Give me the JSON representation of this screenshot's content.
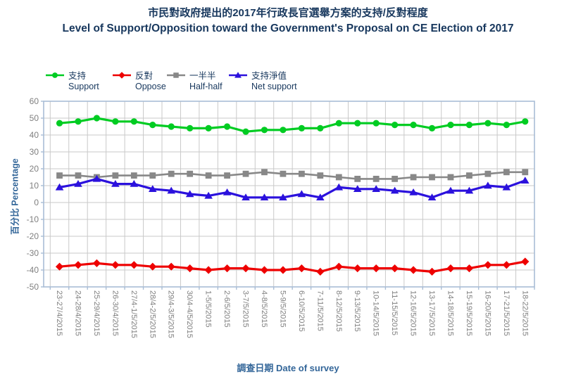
{
  "titles": {
    "zh": "市民對政府提出的2017年行政長官選舉方案的支持/反對程度",
    "en": "Level of Support/Opposition toward the Government's Proposal on CE Election of 2017"
  },
  "legend": [
    {
      "zh": "支持",
      "en": "Support",
      "marker": "circle",
      "color": "#00cc22"
    },
    {
      "zh": "反對",
      "en": "Oppose",
      "marker": "diamond",
      "color": "#ee0000"
    },
    {
      "zh": "一半半",
      "en": "Half-half",
      "marker": "square",
      "color": "#888888"
    },
    {
      "zh": "支持淨值",
      "en": "Net support",
      "marker": "triangle",
      "color": "#2b11dd"
    }
  ],
  "axes": {
    "x_title": "調查日期 Date of survey",
    "y_title": "百分比 Percentage"
  },
  "chart_data": {
    "type": "line",
    "title": "Level of Support/Opposition toward the Government's Proposal on CE Election of 2017",
    "title_zh": "市民對政府提出的2017年行政長官選舉方案的支持/反對程度",
    "xlabel": "調查日期 Date of survey",
    "ylabel": "百分比 Percentage",
    "ylim": [
      -50,
      60
    ],
    "ytick_step": 10,
    "grid": true,
    "legend_position": "top-left",
    "categories": [
      "23-27/4/2015",
      "24-28/4/2015",
      "25-29/4/2015",
      "26-30/4/2015",
      "27/4-1/5/2015",
      "28/4-2/5/2015",
      "29/4-3/5/2015",
      "30/4-4/5/2015",
      "1-5/5/2015",
      "2-6/5/2015",
      "3-7/5/2015",
      "4-8/5/2015",
      "5-9/5/2015",
      "6-10/5/2015",
      "7-11/5/2015",
      "8-12/5/2015",
      "9-13/5/2015",
      "10-14/5/2015",
      "11-15/5/2015",
      "12-16/5/2015",
      "13-17/5/2015",
      "14-18/5/2015",
      "15-19/5/2015",
      "16-20/5/2015",
      "17-21/5/2015",
      "18-22/5/2015"
    ],
    "series": [
      {
        "name_zh": "支持",
        "name_en": "Support",
        "marker": "circle",
        "color": "#00cc22",
        "values": [
          47,
          48,
          50,
          48,
          48,
          46,
          45,
          44,
          44,
          45,
          42,
          43,
          43,
          44,
          44,
          47,
          47,
          47,
          46,
          46,
          44,
          46,
          46,
          47,
          46,
          48
        ]
      },
      {
        "name_zh": "反對",
        "name_en": "Oppose",
        "marker": "diamond",
        "color": "#ee0000",
        "values": [
          -38,
          -37,
          -36,
          -37,
          -37,
          -38,
          -38,
          -39,
          -40,
          -39,
          -39,
          -40,
          -40,
          -39,
          -41,
          -38,
          -39,
          -39,
          -39,
          -40,
          -41,
          -39,
          -39,
          -37,
          -37,
          -35
        ]
      },
      {
        "name_zh": "一半半",
        "name_en": "Half-half",
        "marker": "square",
        "color": "#888888",
        "values": [
          16,
          16,
          15,
          16,
          16,
          16,
          17,
          17,
          16,
          16,
          17,
          18,
          17,
          17,
          16,
          15,
          14,
          14,
          14,
          15,
          15,
          15,
          16,
          17,
          18,
          18
        ]
      },
      {
        "name_zh": "支持淨值",
        "name_en": "Net support",
        "marker": "triangle",
        "color": "#2b11dd",
        "values": [
          9,
          11,
          14,
          11,
          11,
          8,
          7,
          5,
          4,
          6,
          3,
          3,
          3,
          5,
          3,
          9,
          8,
          8,
          7,
          6,
          3,
          7,
          7,
          10,
          9,
          13
        ]
      }
    ]
  },
  "colors": {
    "title": "#17375d",
    "axis_title": "#336699",
    "tick_label": "#7f7f7f",
    "grid": "#c9c9c9",
    "axis_border": "#a9bdd6",
    "background": "#ffffff"
  }
}
